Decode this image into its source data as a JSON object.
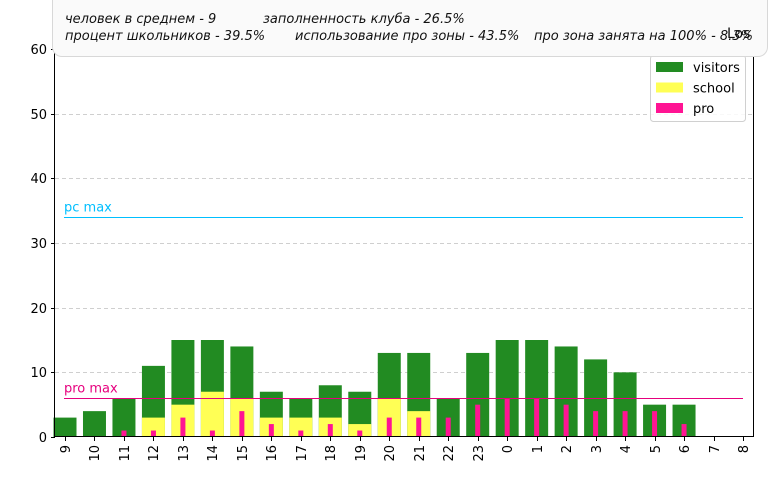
{
  "stats": {
    "people_avg": "человек в среднем - 9",
    "club_fill": "заполненность клуба - 26.5%",
    "school_pct": "процент школьников - 39.5%",
    "pro_zone_use": "использование про зоны - 43.5%",
    "pro_zone_full": "про зона занята на 100% - 8.3%",
    "corner_label": "Los"
  },
  "chart_data": {
    "type": "bar",
    "categories": [
      "9",
      "10",
      "11",
      "12",
      "13",
      "14",
      "15",
      "16",
      "17",
      "18",
      "19",
      "20",
      "21",
      "22",
      "23",
      "0",
      "1",
      "2",
      "3",
      "4",
      "5",
      "6",
      "7",
      "8"
    ],
    "series": [
      {
        "name": "visitors",
        "color": "#228b22",
        "values": [
          3,
          4,
          6,
          11,
          15,
          15,
          14,
          7,
          6,
          8,
          7,
          13,
          13,
          6,
          13,
          15,
          15,
          14,
          12,
          10,
          5,
          5,
          0,
          0
        ]
      },
      {
        "name": "school",
        "color": "#ffff55",
        "values": [
          0,
          0,
          0,
          3,
          5,
          7,
          6,
          3,
          3,
          3,
          2,
          6,
          4,
          0,
          0,
          0,
          0,
          0,
          0,
          0,
          0,
          0,
          0,
          0
        ]
      },
      {
        "name": "pro",
        "color": "#ff1493",
        "values": [
          0,
          0,
          1,
          1,
          3,
          1,
          4,
          2,
          1,
          2,
          1,
          3,
          3,
          3,
          5,
          6,
          6,
          5,
          4,
          4,
          4,
          2,
          0,
          0
        ]
      }
    ],
    "hlines": [
      {
        "label": "pc max",
        "value": 34,
        "color": "#00bfff"
      },
      {
        "label": "pro max",
        "value": 6,
        "color": "#e6007e"
      }
    ],
    "ylim": [
      0,
      60
    ],
    "yticks": [
      0,
      10,
      20,
      30,
      40,
      50,
      60
    ],
    "grid": true,
    "legend_position": "top-right"
  }
}
